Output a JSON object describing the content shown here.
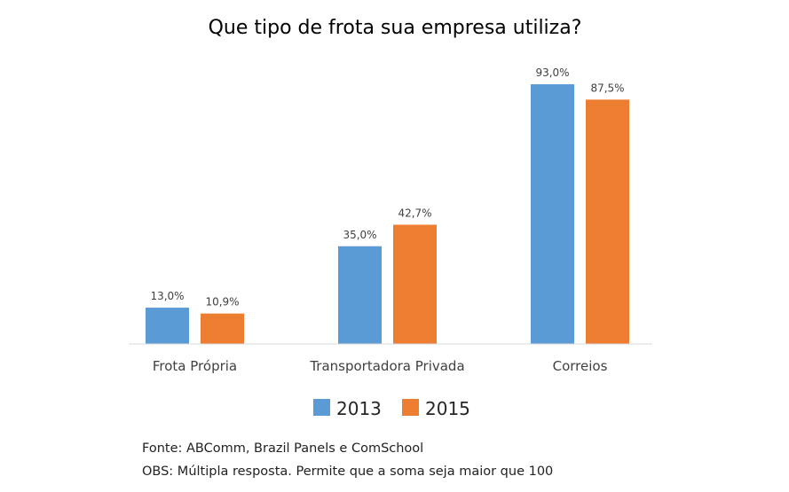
{
  "chart_data": {
    "type": "bar",
    "title": "Que tipo de frota sua empresa utiliza?",
    "categories": [
      "Frota Própria",
      "Transportadora Privada",
      "Correios"
    ],
    "series": [
      {
        "name": "2013",
        "values": [
          13.0,
          35.0,
          93.0
        ],
        "labels": [
          "13,0%",
          "35,0%",
          "93,0%"
        ],
        "color": "#5b9bd5"
      },
      {
        "name": "2015",
        "values": [
          10.9,
          42.7,
          87.5
        ],
        "labels": [
          "10,9%",
          "42,7%",
          "87,5%"
        ],
        "color": "#ed7d31"
      }
    ],
    "ylim": [
      0,
      100
    ],
    "grid": false,
    "legend": "bottom"
  },
  "notes": {
    "source": "Fonte: ABComm, Brazil Panels e ComSchool",
    "obs": "OBS: Múltipla resposta. Permite que a soma seja maior que 100"
  }
}
